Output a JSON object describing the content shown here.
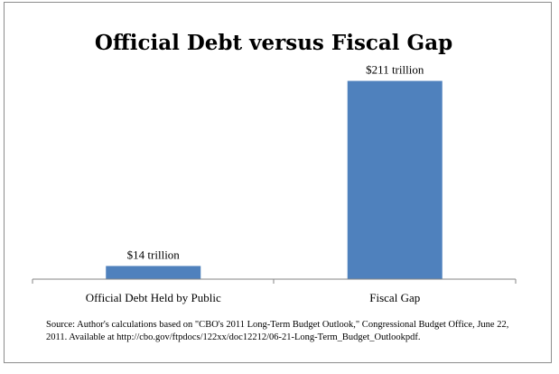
{
  "chart_data": {
    "type": "bar",
    "title": "Official Debt versus Fiscal Gap",
    "categories": [
      "Official Debt Held by Public",
      "Fiscal Gap"
    ],
    "values": [
      14,
      211
    ],
    "data_labels": [
      "$14 trillion",
      "$211 trillion"
    ],
    "unit": "trillion USD",
    "xlabel": "",
    "ylabel": "",
    "ylim": [
      0,
      225
    ],
    "grid": false,
    "legend": "none",
    "bar_color": "#4f81bd",
    "axis_color": "#868686"
  },
  "source_note": "Source: Author's calculations based on \"CBO's 2011 Long-Term Budget Outlook,\" Congressional Budget Office, June 22, 2011.  Available at http://cbo.gov/ftpdocs/122xx/doc12212/06-21-Long-Term_Budget_Outlookpdf."
}
